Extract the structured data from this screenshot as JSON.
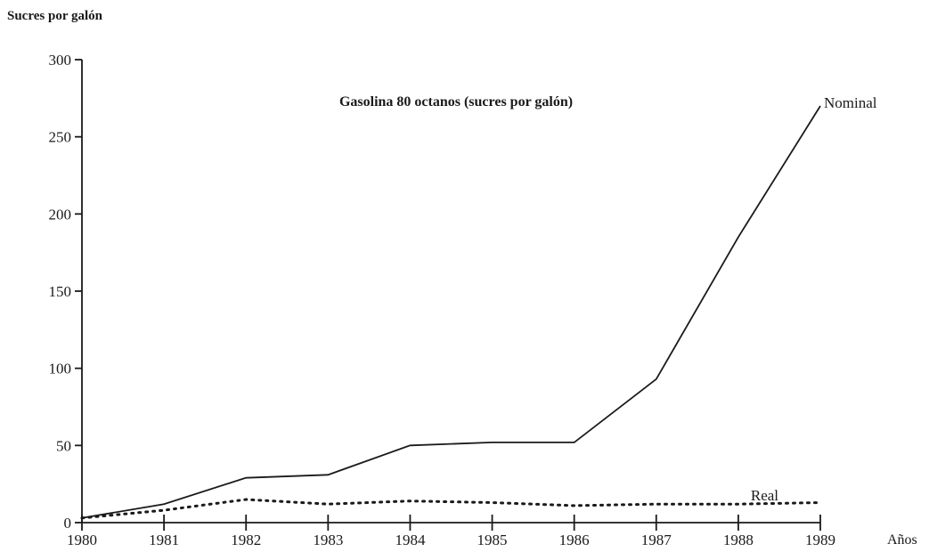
{
  "chart_data": {
    "type": "line",
    "title": "Gasolina 80 octanos (sucres por galón)",
    "ylabel": "Sucres por galón",
    "xlabel": "Años",
    "x": [
      "1980",
      "1981",
      "1982",
      "1983",
      "1984",
      "1985",
      "1986",
      "1987",
      "1988",
      "1989"
    ],
    "ylim": [
      0,
      300
    ],
    "yticks": [
      "0",
      "50",
      "100",
      "150",
      "200",
      "250",
      "300"
    ],
    "grid": false,
    "series": [
      {
        "name": "Nominal",
        "style": "solid",
        "color": "#1a1a1a",
        "values": [
          3,
          12,
          29,
          31,
          50,
          52,
          52,
          93,
          185,
          270
        ]
      },
      {
        "name": "Real",
        "style": "dotted",
        "color": "#1a1a1a",
        "values": [
          3,
          8,
          15,
          12,
          14,
          13,
          11,
          12,
          12,
          13
        ]
      }
    ]
  }
}
